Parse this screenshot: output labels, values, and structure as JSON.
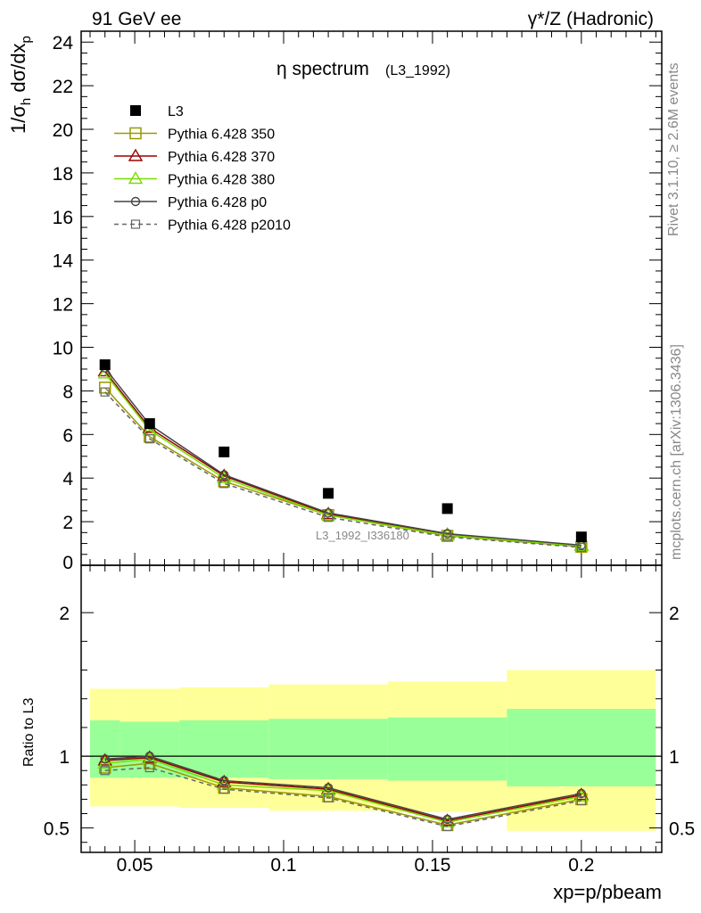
{
  "header": {
    "left": "91 GeV ee",
    "right": "γ*/Z (Hadronic)"
  },
  "side_text": {
    "rivet": "Rivet 3.1.10, ≥ 2.6M events",
    "mcplots": "mcplots.cern.ch [arXiv:1306.3436]"
  },
  "watermark": "L3_1992_I336180",
  "chart_data": [
    {
      "type": "line",
      "title": "η spectrum",
      "title_suffix": "(L3_1992)",
      "ylabel": "1/σh dσ/dxp",
      "ylim": [
        0,
        24.5
      ],
      "yticks": [
        2,
        4,
        6,
        8,
        10,
        12,
        14,
        16,
        18,
        20,
        22,
        24
      ],
      "ytick_labels": [
        "2",
        "4",
        "6",
        "8",
        "10",
        "12",
        "14",
        "16",
        "18",
        "20",
        "22",
        "24"
      ],
      "y_zero_label": "0",
      "xlim": [
        0.032,
        0.227
      ],
      "x": [
        0.04,
        0.055,
        0.08,
        0.115,
        0.155,
        0.2
      ],
      "legend_position": "top-left",
      "data": {
        "name": "L3",
        "values": [
          9.2,
          6.5,
          5.2,
          3.3,
          2.6,
          1.3
        ]
      },
      "series": [
        {
          "name": "Pythia 6.428 350",
          "color": "#999900",
          "marker": "square",
          "dash": false,
          "values": [
            8.15,
            5.9,
            3.85,
            2.3,
            1.35,
            0.85
          ]
        },
        {
          "name": "Pythia 6.428 370",
          "color": "#990000",
          "marker": "triangle",
          "dash": false,
          "values": [
            8.9,
            6.3,
            4.1,
            2.35,
            1.4,
            0.9
          ]
        },
        {
          "name": "Pythia 6.428 380",
          "color": "#77dd00",
          "marker": "triangle",
          "dash": false,
          "values": [
            8.8,
            6.2,
            4.0,
            2.3,
            1.38,
            0.88
          ]
        },
        {
          "name": "Pythia 6.428 p0",
          "color": "#444444",
          "marker": "circle",
          "dash": false,
          "values": [
            9.05,
            6.45,
            4.15,
            2.4,
            1.45,
            0.92
          ]
        },
        {
          "name": "Pythia 6.428 p2010",
          "color": "#666666",
          "marker": "square-small",
          "dash": true,
          "values": [
            7.95,
            5.8,
            3.75,
            2.2,
            1.3,
            0.82
          ]
        }
      ]
    },
    {
      "type": "line",
      "ylabel": "Ratio to L3",
      "xlabel": "xp=p/pbeam",
      "ylim": [
        0.33,
        2.33
      ],
      "yticks": [
        0.5,
        1,
        2
      ],
      "ytick_labels": [
        "0.5",
        "1",
        "2"
      ],
      "xlim": [
        0.032,
        0.227
      ],
      "xticks": [
        0.05,
        0.1,
        0.15,
        0.2
      ],
      "xtick_labels": [
        "0.05",
        "0.1",
        "0.15",
        "0.2"
      ],
      "reference_line": 1,
      "bands": [
        {
          "x0": 0.035,
          "x1": 0.045,
          "y1_low": 0.85,
          "y1_high": 1.25,
          "y2_low": 0.65,
          "y2_high": 1.47
        },
        {
          "x0": 0.045,
          "x1": 0.065,
          "y1_low": 0.85,
          "y1_high": 1.24,
          "y2_low": 0.65,
          "y2_high": 1.47
        },
        {
          "x0": 0.065,
          "x1": 0.095,
          "y1_low": 0.85,
          "y1_high": 1.25,
          "y2_low": 0.64,
          "y2_high": 1.48
        },
        {
          "x0": 0.095,
          "x1": 0.135,
          "y1_low": 0.84,
          "y1_high": 1.26,
          "y2_low": 0.62,
          "y2_high": 1.5
        },
        {
          "x0": 0.135,
          "x1": 0.175,
          "y1_low": 0.83,
          "y1_high": 1.27,
          "y2_low": 0.61,
          "y2_high": 1.52
        },
        {
          "x0": 0.175,
          "x1": 0.225,
          "y1_low": 0.79,
          "y1_high": 1.33,
          "y2_low": 0.48,
          "y2_high": 1.6
        }
      ],
      "band_colors": {
        "inner": "#99ff99",
        "outer": "#ffff99"
      },
      "x": [
        0.04,
        0.055,
        0.08,
        0.115,
        0.155,
        0.2
      ],
      "series": [
        {
          "name": "Pythia 6.428 350",
          "color": "#999900",
          "marker": "square",
          "dash": false,
          "values": [
            0.92,
            0.95,
            0.78,
            0.72,
            0.52,
            0.7
          ]
        },
        {
          "name": "Pythia 6.428 370",
          "color": "#990000",
          "marker": "triangle",
          "dash": false,
          "values": [
            0.97,
            0.99,
            0.82,
            0.77,
            0.55,
            0.73
          ]
        },
        {
          "name": "Pythia 6.428 380",
          "color": "#77dd00",
          "marker": "triangle",
          "dash": false,
          "values": [
            0.95,
            0.98,
            0.8,
            0.76,
            0.54,
            0.72
          ]
        },
        {
          "name": "Pythia 6.428 p0",
          "color": "#444444",
          "marker": "circle",
          "dash": false,
          "values": [
            0.98,
            1.0,
            0.83,
            0.78,
            0.56,
            0.74
          ]
        },
        {
          "name": "Pythia 6.428 p2010",
          "color": "#666666",
          "marker": "square-small",
          "dash": true,
          "values": [
            0.9,
            0.92,
            0.77,
            0.71,
            0.51,
            0.69
          ]
        }
      ]
    }
  ]
}
